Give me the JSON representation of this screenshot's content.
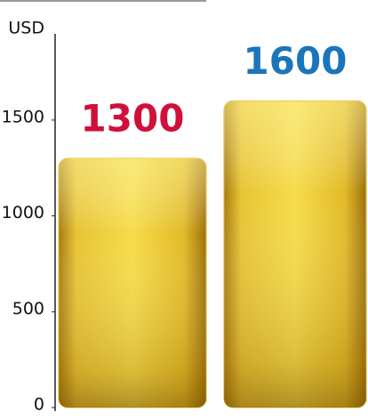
{
  "chart_data": {
    "type": "bar",
    "y_label": "USD",
    "categories": [
      null,
      null
    ],
    "values": [
      1300,
      1600
    ],
    "color": "#e2b92a",
    "label_colors": [
      "#d0103a",
      "#1b75bb"
    ],
    "ylim": [
      0,
      1950
    ],
    "yticks": [
      0,
      500,
      1000,
      1500
    ]
  }
}
